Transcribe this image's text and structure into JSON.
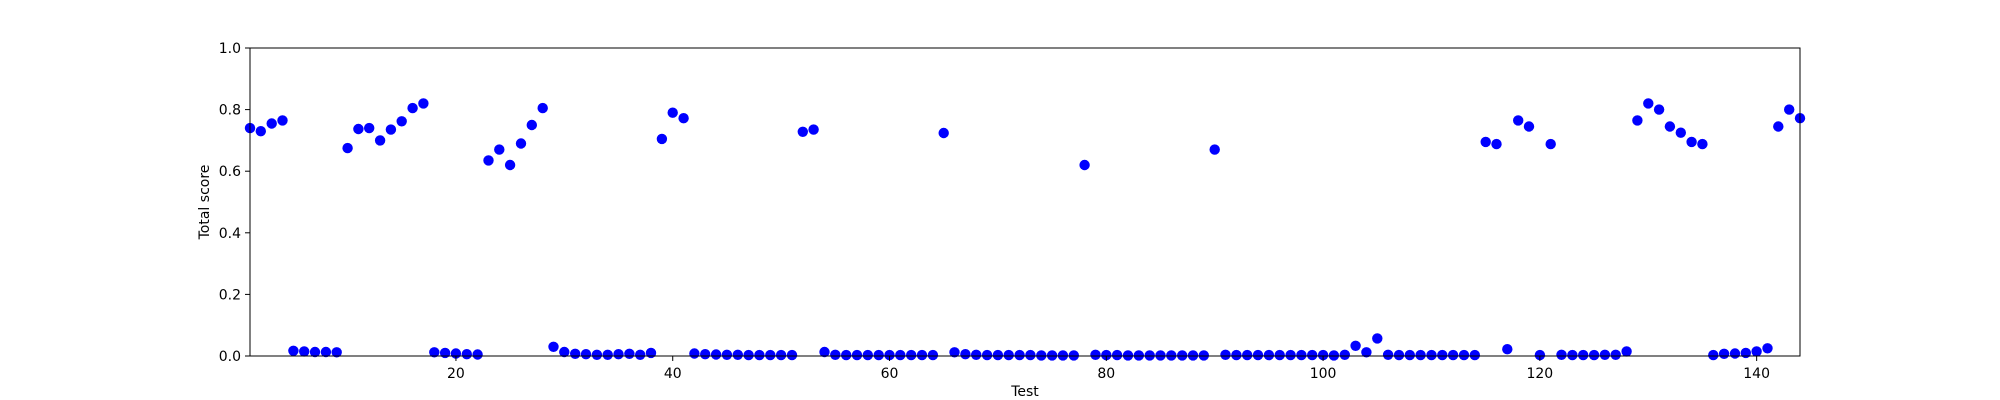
{
  "chart_data": {
    "type": "scatter",
    "title": "",
    "xlabel": "Test",
    "ylabel": "Total score",
    "xlim": [
      1,
      144
    ],
    "ylim": [
      0.0,
      1.0
    ],
    "x_ticks": [
      20,
      40,
      60,
      80,
      100,
      120,
      140
    ],
    "y_ticks": [
      0.0,
      0.2,
      0.4,
      0.6,
      0.8,
      1.0
    ],
    "y_tick_labels": [
      "0.0",
      "0.2",
      "0.4",
      "0.6",
      "0.8",
      "1.0"
    ],
    "grid": false,
    "legend": "none",
    "marker_color": "#0000ff",
    "points": [
      [
        1,
        0.74
      ],
      [
        2,
        0.73
      ],
      [
        3,
        0.755
      ],
      [
        4,
        0.765
      ],
      [
        5,
        0.017
      ],
      [
        6,
        0.015
      ],
      [
        7,
        0.013
      ],
      [
        8,
        0.013
      ],
      [
        9,
        0.012
      ],
      [
        10,
        0.675
      ],
      [
        11,
        0.737
      ],
      [
        12,
        0.74
      ],
      [
        13,
        0.7
      ],
      [
        14,
        0.735
      ],
      [
        15,
        0.762
      ],
      [
        16,
        0.805
      ],
      [
        17,
        0.82
      ],
      [
        18,
        0.012
      ],
      [
        19,
        0.01
      ],
      [
        20,
        0.008
      ],
      [
        21,
        0.006
      ],
      [
        22,
        0.005
      ],
      [
        23,
        0.635
      ],
      [
        24,
        0.67
      ],
      [
        25,
        0.62
      ],
      [
        26,
        0.69
      ],
      [
        27,
        0.75
      ],
      [
        28,
        0.805
      ],
      [
        29,
        0.03
      ],
      [
        30,
        0.013
      ],
      [
        31,
        0.007
      ],
      [
        32,
        0.006
      ],
      [
        33,
        0.004
      ],
      [
        34,
        0.004
      ],
      [
        35,
        0.006
      ],
      [
        36,
        0.007
      ],
      [
        37,
        0.004
      ],
      [
        38,
        0.01
      ],
      [
        39,
        0.705
      ],
      [
        40,
        0.79
      ],
      [
        41,
        0.772
      ],
      [
        42,
        0.008
      ],
      [
        43,
        0.006
      ],
      [
        44,
        0.005
      ],
      [
        45,
        0.004
      ],
      [
        46,
        0.004
      ],
      [
        47,
        0.003
      ],
      [
        48,
        0.003
      ],
      [
        49,
        0.003
      ],
      [
        50,
        0.003
      ],
      [
        51,
        0.003
      ],
      [
        52,
        0.728
      ],
      [
        53,
        0.735
      ],
      [
        54,
        0.013
      ],
      [
        55,
        0.004
      ],
      [
        56,
        0.003
      ],
      [
        57,
        0.003
      ],
      [
        58,
        0.003
      ],
      [
        59,
        0.003
      ],
      [
        60,
        0.003
      ],
      [
        61,
        0.003
      ],
      [
        62,
        0.003
      ],
      [
        63,
        0.003
      ],
      [
        64,
        0.003
      ],
      [
        65,
        0.724
      ],
      [
        66,
        0.012
      ],
      [
        67,
        0.006
      ],
      [
        68,
        0.004
      ],
      [
        69,
        0.003
      ],
      [
        70,
        0.003
      ],
      [
        71,
        0.003
      ],
      [
        72,
        0.003
      ],
      [
        73,
        0.003
      ],
      [
        74,
        0.002
      ],
      [
        75,
        0.002
      ],
      [
        76,
        0.002
      ],
      [
        77,
        0.002
      ],
      [
        78,
        0.62
      ],
      [
        79,
        0.004
      ],
      [
        80,
        0.003
      ],
      [
        81,
        0.003
      ],
      [
        82,
        0.002
      ],
      [
        83,
        0.002
      ],
      [
        84,
        0.002
      ],
      [
        85,
        0.002
      ],
      [
        86,
        0.002
      ],
      [
        87,
        0.002
      ],
      [
        88,
        0.002
      ],
      [
        89,
        0.002
      ],
      [
        90,
        0.67
      ],
      [
        91,
        0.004
      ],
      [
        92,
        0.003
      ],
      [
        93,
        0.003
      ],
      [
        94,
        0.003
      ],
      [
        95,
        0.003
      ],
      [
        96,
        0.003
      ],
      [
        97,
        0.003
      ],
      [
        98,
        0.003
      ],
      [
        99,
        0.003
      ],
      [
        100,
        0.003
      ],
      [
        101,
        0.002
      ],
      [
        102,
        0.004
      ],
      [
        103,
        0.033
      ],
      [
        104,
        0.012
      ],
      [
        105,
        0.057
      ],
      [
        106,
        0.004
      ],
      [
        107,
        0.003
      ],
      [
        108,
        0.003
      ],
      [
        109,
        0.003
      ],
      [
        110,
        0.003
      ],
      [
        111,
        0.003
      ],
      [
        112,
        0.003
      ],
      [
        113,
        0.003
      ],
      [
        114,
        0.003
      ],
      [
        115,
        0.695
      ],
      [
        116,
        0.688
      ],
      [
        117,
        0.022
      ],
      [
        118,
        0.765
      ],
      [
        119,
        0.745
      ],
      [
        120,
        0.003
      ],
      [
        121,
        0.688
      ],
      [
        122,
        0.004
      ],
      [
        123,
        0.003
      ],
      [
        124,
        0.003
      ],
      [
        125,
        0.003
      ],
      [
        126,
        0.004
      ],
      [
        127,
        0.004
      ],
      [
        128,
        0.015
      ],
      [
        129,
        0.765
      ],
      [
        130,
        0.82
      ],
      [
        131,
        0.8
      ],
      [
        132,
        0.745
      ],
      [
        133,
        0.725
      ],
      [
        134,
        0.695
      ],
      [
        135,
        0.688
      ],
      [
        136,
        0.003
      ],
      [
        137,
        0.007
      ],
      [
        138,
        0.008
      ],
      [
        139,
        0.01
      ],
      [
        140,
        0.015
      ],
      [
        141,
        0.025
      ],
      [
        142,
        0.745
      ],
      [
        143,
        0.8
      ],
      [
        144,
        0.772
      ]
    ]
  }
}
